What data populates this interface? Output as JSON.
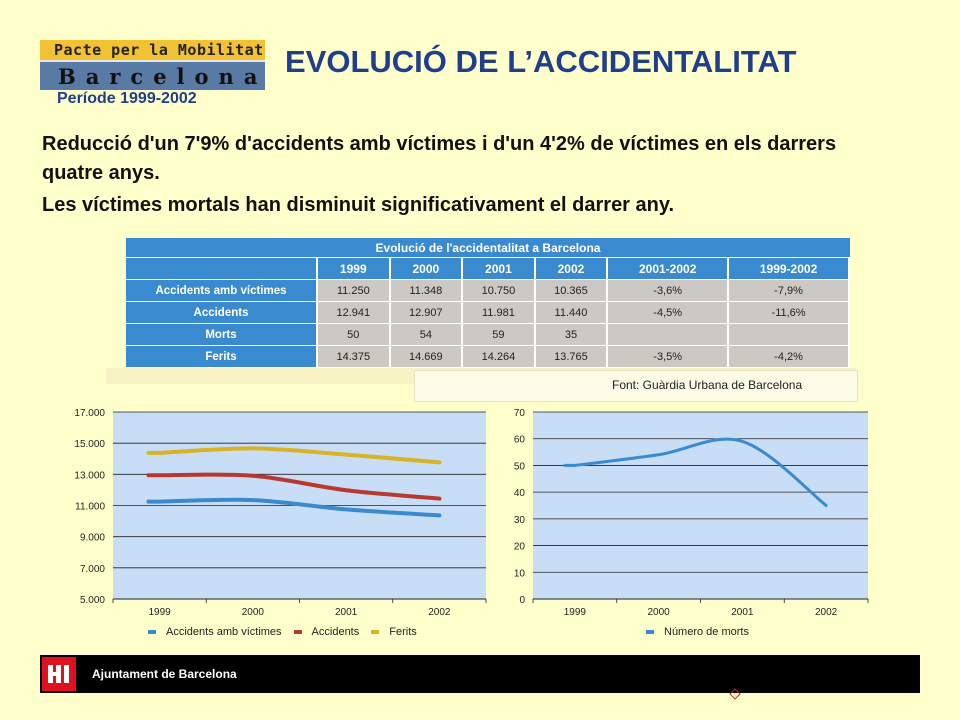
{
  "logo": {
    "line1": "Pacte per la Mobilitat",
    "line2": "Barcelona"
  },
  "period": "Període 1999-2002",
  "title": "EVOLUCIÓ DE L’ACCIDENTALITAT",
  "intro": [
    "Reducció d'un 7'9% d'accidents amb víctimes i d'un 4'2% de víctimes en els darrers quatre anys.",
    "Les víctimes mortals han disminuit significativament el darrer any."
  ],
  "table": {
    "caption": "Evolució de l'accidentalitat a Barcelona",
    "headers": [
      "",
      "1999",
      "2000",
      "2001",
      "2002",
      "2001-2002",
      "1999-2002"
    ],
    "rows": [
      [
        "Accidents amb víctimes",
        "11.250",
        "11.348",
        "10.750",
        "10.365",
        "-3,6%",
        "-7,9%"
      ],
      [
        "Accidents",
        "12.941",
        "12.907",
        "11.981",
        "11.440",
        "-4,5%",
        "-11,6%"
      ],
      [
        "Morts",
        "50",
        "54",
        "59",
        "35",
        "",
        ""
      ],
      [
        "Ferits",
        "14.375",
        "14.669",
        "14.264",
        "13.765",
        "-3,5%",
        "-4,2%"
      ]
    ],
    "source": "Font: Guàrdia Urbana de Barcelona"
  },
  "chart_data": [
    {
      "type": "line",
      "categories": [
        "1999",
        "2000",
        "2001",
        "2002"
      ],
      "ylim": [
        5000,
        17000
      ],
      "yticks": [
        5000,
        7000,
        9000,
        11000,
        13000,
        15000,
        17000
      ],
      "ytick_labels": [
        "5.000",
        "7.000",
        "9.000",
        "11.000",
        "13.000",
        "15.000",
        "17.000"
      ],
      "grid": true,
      "legend_position": "bottom",
      "series": [
        {
          "name": "Accidents amb víctimes",
          "color": "#3a8ad0",
          "values": [
            11250,
            11348,
            10750,
            10365
          ]
        },
        {
          "name": "Accidents",
          "color": "#b8382f",
          "values": [
            12941,
            12907,
            11981,
            11440
          ]
        },
        {
          "name": "Ferits",
          "color": "#d9b325",
          "values": [
            14375,
            14669,
            14264,
            13765
          ]
        }
      ]
    },
    {
      "type": "line",
      "categories": [
        "1999",
        "2000",
        "2001",
        "2002"
      ],
      "ylim": [
        0,
        70
      ],
      "yticks": [
        0,
        10,
        20,
        30,
        40,
        50,
        60,
        70
      ],
      "ytick_labels": [
        "0",
        "10",
        "20",
        "30",
        "40",
        "50",
        "60",
        "70"
      ],
      "grid": true,
      "legend_position": "bottom",
      "series": [
        {
          "name": "Número de morts",
          "color": "#3a8ad0",
          "values": [
            50,
            54,
            59,
            35
          ]
        }
      ]
    }
  ],
  "footer": {
    "text": "Ajuntament de Barcelona"
  }
}
